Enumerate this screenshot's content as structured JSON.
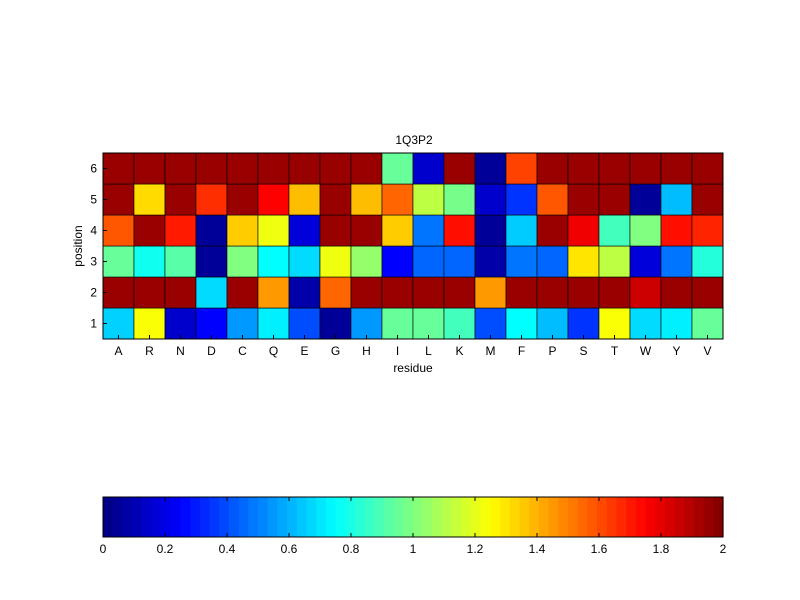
{
  "chart_data": {
    "type": "heatmap",
    "title": "1Q3P2",
    "xlabel": "residue",
    "ylabel": "position",
    "x_categories": [
      "A",
      "R",
      "N",
      "D",
      "C",
      "Q",
      "E",
      "G",
      "H",
      "I",
      "L",
      "K",
      "M",
      "F",
      "P",
      "S",
      "T",
      "W",
      "Y",
      "V"
    ],
    "y_categories": [
      "1",
      "2",
      "3",
      "4",
      "5",
      "6"
    ],
    "values": [
      [
        0.66,
        1.24,
        0.15,
        0.25,
        0.55,
        0.72,
        0.4,
        0.05,
        0.55,
        0.95,
        0.95,
        0.88,
        0.4,
        0.75,
        0.62,
        0.35,
        1.24,
        0.68,
        0.72,
        0.95
      ],
      [
        1.95,
        1.95,
        1.95,
        0.68,
        1.95,
        1.45,
        0.08,
        1.55,
        1.95,
        1.95,
        1.95,
        1.95,
        1.45,
        1.95,
        1.95,
        1.95,
        1.95,
        1.85,
        1.95,
        1.95
      ],
      [
        0.95,
        0.78,
        0.92,
        0.05,
        1.0,
        0.75,
        0.68,
        1.22,
        1.04,
        0.25,
        0.45,
        0.45,
        0.08,
        0.48,
        0.45,
        1.3,
        1.12,
        0.18,
        0.48,
        0.82
      ],
      [
        1.58,
        1.95,
        1.7,
        0.05,
        1.35,
        1.22,
        0.18,
        1.95,
        1.95,
        1.35,
        0.48,
        1.72,
        0.05,
        0.65,
        1.95,
        1.78,
        0.88,
        1.0,
        1.72,
        1.68
      ],
      [
        1.95,
        1.32,
        1.95,
        1.66,
        1.95,
        1.75,
        1.38,
        1.95,
        1.38,
        1.55,
        1.12,
        0.98,
        0.15,
        0.35,
        1.58,
        1.95,
        1.95,
        0.05,
        0.62,
        1.95
      ],
      [
        1.95,
        1.95,
        1.95,
        1.95,
        1.95,
        1.95,
        1.95,
        1.95,
        1.95,
        0.95,
        0.15,
        1.95,
        0.05,
        1.62,
        1.95,
        1.95,
        1.95,
        1.95,
        1.95,
        1.95
      ]
    ],
    "colorbar": {
      "min": 0,
      "max": 2,
      "colormap": "jet",
      "tick_values": [
        0,
        0.2,
        0.4,
        0.6,
        0.8,
        1,
        1.2,
        1.4,
        1.6,
        1.8,
        2
      ],
      "tick_labels": [
        "0",
        "0.2",
        "0.4",
        "0.6",
        "0.8",
        "1",
        "1.2",
        "1.4",
        "1.6",
        "1.8",
        "2"
      ],
      "placement": "bottom"
    }
  }
}
